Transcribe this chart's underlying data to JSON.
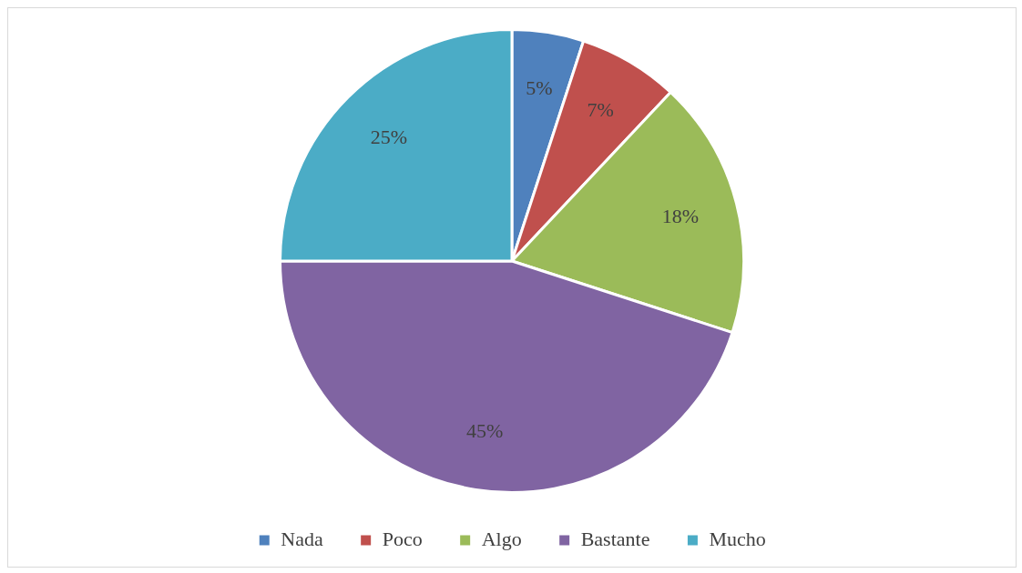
{
  "chart_data": {
    "type": "pie",
    "categories": [
      "Nada",
      "Poco",
      "Algo",
      "Bastante",
      "Mucho"
    ],
    "values": [
      5,
      7,
      18,
      45,
      25
    ],
    "colors": [
      "#4f81bd",
      "#c0504d",
      "#9bbb59",
      "#8064a2",
      "#4bacc6"
    ],
    "value_labels": [
      "5%",
      "7%",
      "18%",
      "45%",
      "25%"
    ],
    "legend": "bottom"
  }
}
